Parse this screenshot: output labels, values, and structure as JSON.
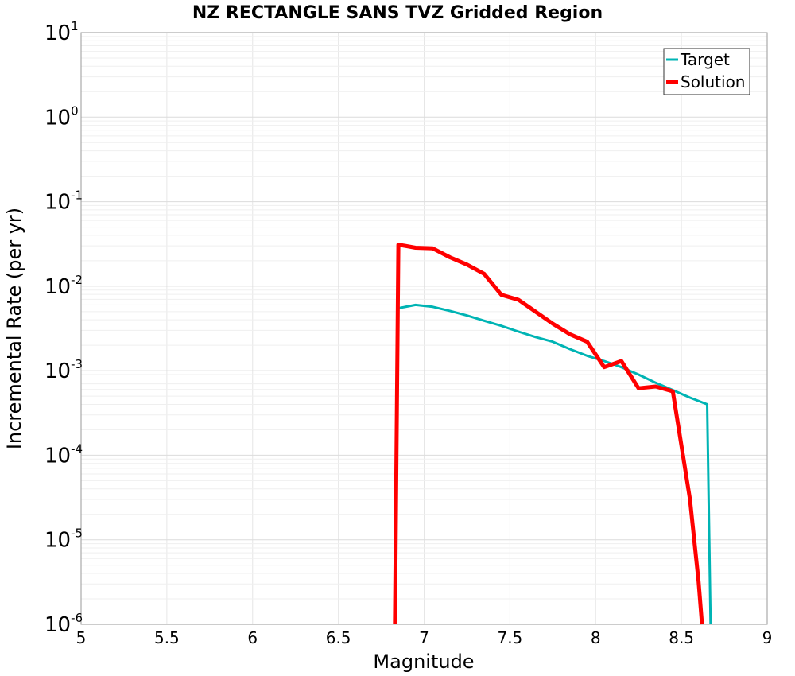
{
  "chart_data": {
    "type": "line",
    "title": "NZ RECTANGLE SANS TVZ Gridded Region",
    "xlabel": "Magnitude",
    "ylabel": "Incremental Rate (per yr)",
    "xlim": [
      5,
      9
    ],
    "ylim": [
      1e-06,
      10
    ],
    "yscale": "log",
    "grid": true,
    "legend_position": "top-right",
    "x_ticks": [
      "5",
      "5.5",
      "6",
      "6.5",
      "7",
      "7.5",
      "8",
      "8.5",
      "9"
    ],
    "y_ticks": [
      {
        "base": "10",
        "exp": "1"
      },
      {
        "base": "10",
        "exp": "0"
      },
      {
        "base": "10",
        "exp": "-1"
      },
      {
        "base": "10",
        "exp": "-2"
      },
      {
        "base": "10",
        "exp": "-3"
      },
      {
        "base": "10",
        "exp": "-4"
      },
      {
        "base": "10",
        "exp": "-5"
      },
      {
        "base": "10",
        "exp": "-6"
      }
    ],
    "series": [
      {
        "name": "Target",
        "color": "#00b4b4",
        "width": 3,
        "points": [
          [
            6.85,
            0.0055
          ],
          [
            6.95,
            0.006
          ],
          [
            7.05,
            0.0057
          ],
          [
            7.15,
            0.0051
          ],
          [
            7.25,
            0.0045
          ],
          [
            7.35,
            0.0039
          ],
          [
            7.45,
            0.0034
          ],
          [
            7.55,
            0.0029
          ],
          [
            7.65,
            0.0025
          ],
          [
            7.75,
            0.0022
          ],
          [
            7.85,
            0.0018
          ],
          [
            7.95,
            0.0015
          ],
          [
            8.05,
            0.0013
          ],
          [
            8.15,
            0.0011
          ],
          [
            8.25,
            0.0009
          ],
          [
            8.35,
            0.00072
          ],
          [
            8.45,
            0.00059
          ],
          [
            8.55,
            0.00048
          ],
          [
            8.65,
            0.0004
          ],
          [
            8.67,
            1e-06
          ]
        ]
      },
      {
        "name": "Solution",
        "color": "#ff0000",
        "width": 5,
        "points": [
          [
            6.83,
            1e-06
          ],
          [
            6.85,
            0.031
          ],
          [
            6.95,
            0.0285
          ],
          [
            7.05,
            0.028
          ],
          [
            7.15,
            0.022
          ],
          [
            7.25,
            0.018
          ],
          [
            7.35,
            0.014
          ],
          [
            7.45,
            0.0079
          ],
          [
            7.55,
            0.0069
          ],
          [
            7.65,
            0.005
          ],
          [
            7.75,
            0.0036
          ],
          [
            7.85,
            0.0027
          ],
          [
            7.95,
            0.0022
          ],
          [
            8.05,
            0.0011
          ],
          [
            8.15,
            0.0013
          ],
          [
            8.25,
            0.00062
          ],
          [
            8.35,
            0.00065
          ],
          [
            8.45,
            0.00057
          ],
          [
            8.55,
            3e-05
          ],
          [
            8.6,
            3.2e-06
          ],
          [
            8.62,
            1e-06
          ]
        ]
      }
    ]
  }
}
